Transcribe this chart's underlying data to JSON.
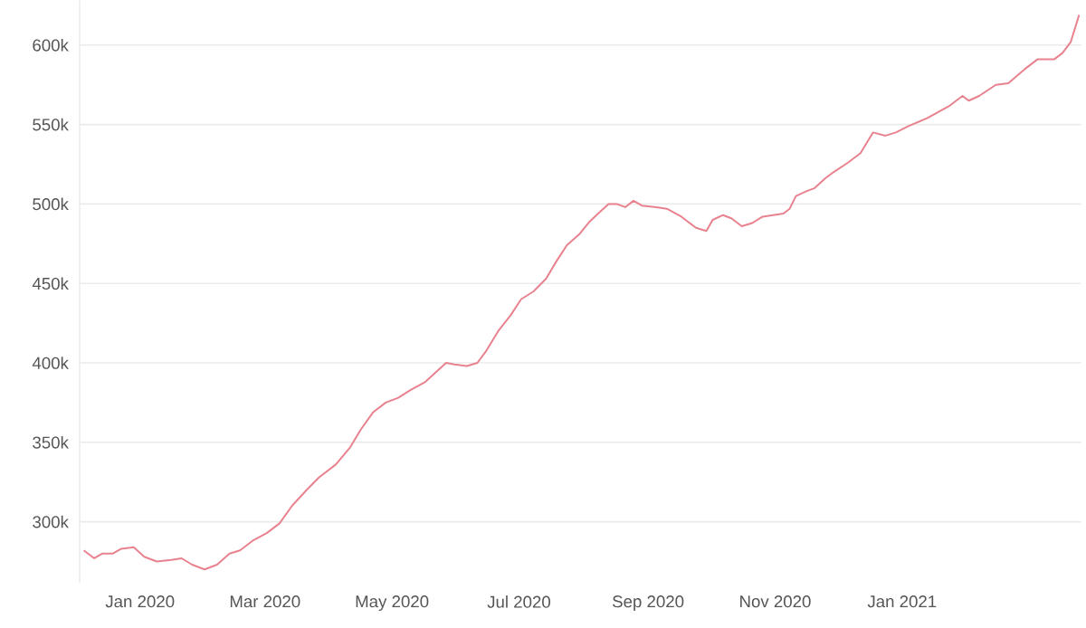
{
  "chart_data": {
    "type": "line",
    "x": [
      "2019-12-05",
      "2019-12-10",
      "2019-12-14",
      "2019-12-19",
      "2019-12-23",
      "2019-12-29",
      "2020-01-03",
      "2020-01-09",
      "2020-01-16",
      "2020-01-21",
      "2020-01-26",
      "2020-02-01",
      "2020-02-07",
      "2020-02-13",
      "2020-02-18",
      "2020-02-24",
      "2020-03-02",
      "2020-03-08",
      "2020-03-14",
      "2020-03-21",
      "2020-03-27",
      "2020-04-04",
      "2020-04-11",
      "2020-04-16",
      "2020-04-22",
      "2020-04-28",
      "2020-05-04",
      "2020-05-10",
      "2020-05-17",
      "2020-05-22",
      "2020-05-27",
      "2020-05-31",
      "2020-06-06",
      "2020-06-11",
      "2020-06-15",
      "2020-06-21",
      "2020-06-27",
      "2020-07-02",
      "2020-07-08",
      "2020-07-14",
      "2020-07-19",
      "2020-07-24",
      "2020-07-30",
      "2020-08-04",
      "2020-08-08",
      "2020-08-13",
      "2020-08-17",
      "2020-08-21",
      "2020-08-25",
      "2020-08-29",
      "2020-09-05",
      "2020-09-10",
      "2020-09-17",
      "2020-09-24",
      "2020-09-29",
      "2020-10-02",
      "2020-10-07",
      "2020-10-11",
      "2020-10-16",
      "2020-10-21",
      "2020-10-26",
      "2020-10-31",
      "2020-11-05",
      "2020-11-08",
      "2020-11-11",
      "2020-11-16",
      "2020-11-20",
      "2020-11-25",
      "2020-11-29",
      "2020-12-06",
      "2020-12-12",
      "2020-12-18",
      "2020-12-24",
      "2020-12-29",
      "2021-01-04",
      "2021-01-13",
      "2021-01-24",
      "2021-01-30",
      "2021-02-02",
      "2021-02-07",
      "2021-02-15",
      "2021-02-21",
      "2021-03-01",
      "2021-03-07",
      "2021-03-15",
      "2021-03-19",
      "2021-03-23",
      "2021-03-27"
    ],
    "series": [
      {
        "color": "#e8828f",
        "values": [
          282000,
          277000,
          280000,
          280000,
          283000,
          284000,
          278000,
          275000,
          276000,
          277000,
          273000,
          270000,
          273000,
          280000,
          282000,
          288000,
          293000,
          299000,
          310000,
          320000,
          328000,
          336000,
          347000,
          358000,
          369000,
          375000,
          378000,
          383000,
          388000,
          394000,
          400000,
          399000,
          398000,
          400000,
          407000,
          420000,
          430000,
          440000,
          445000,
          453000,
          464000,
          474000,
          481000,
          489000,
          494000,
          500000,
          500000,
          498000,
          502000,
          499000,
          498000,
          497000,
          492000,
          485000,
          483000,
          490000,
          493000,
          491000,
          486000,
          488000,
          492000,
          493000,
          494000,
          497000,
          505000,
          508000,
          510000,
          516000,
          520000,
          526000,
          532000,
          545000,
          543000,
          545000,
          549000,
          554000,
          562000,
          568000,
          565000,
          568000,
          575000,
          576000,
          585000,
          591000,
          591000,
          595000,
          602000,
          619000
        ]
      }
    ],
    "xlim": [
      "2019-12-03",
      "2021-03-28"
    ],
    "xticks": [
      {
        "value": "2020-01-01",
        "label": "Jan 2020"
      },
      {
        "value": "2020-03-01",
        "label": "Mar 2020"
      },
      {
        "value": "2020-05-01",
        "label": "May 2020"
      },
      {
        "value": "2020-07-01",
        "label": "Jul 2020"
      },
      {
        "value": "2020-09-01",
        "label": "Sep 2020"
      },
      {
        "value": "2020-11-01",
        "label": "Nov 2020"
      },
      {
        "value": "2021-01-01",
        "label": "Jan 2021"
      }
    ],
    "ylim": [
      262000,
      628000
    ],
    "yticks": [
      {
        "value": 300000,
        "label": "300k"
      },
      {
        "value": 350000,
        "label": "350k"
      },
      {
        "value": 400000,
        "label": "400k"
      },
      {
        "value": 450000,
        "label": "450k"
      },
      {
        "value": 500000,
        "label": "500k"
      },
      {
        "value": 550000,
        "label": "550k"
      },
      {
        "value": 600000,
        "label": "600k"
      }
    ],
    "grid": "y",
    "line_style": "solid",
    "marker": "none"
  }
}
